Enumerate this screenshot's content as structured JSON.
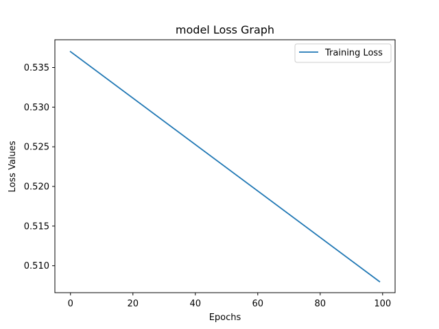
{
  "chart_data": {
    "type": "line",
    "title": "model Loss Graph",
    "xlabel": "Epochs",
    "ylabel": "Loss Values",
    "xlim": [
      -5,
      104
    ],
    "ylim": [
      0.5066,
      0.5385
    ],
    "xticks": [
      0,
      20,
      40,
      60,
      80,
      100
    ],
    "yticks": [
      0.51,
      0.515,
      0.52,
      0.525,
      0.53,
      0.535
    ],
    "ytick_labels": [
      "0.510",
      "0.515",
      "0.520",
      "0.525",
      "0.530",
      "0.535"
    ],
    "grid": false,
    "legend": {
      "location": "top-right"
    },
    "series": [
      {
        "name": "Training Loss",
        "color": "#1f77b4",
        "x": [
          0,
          99
        ],
        "y": [
          0.537,
          0.508
        ]
      }
    ]
  }
}
